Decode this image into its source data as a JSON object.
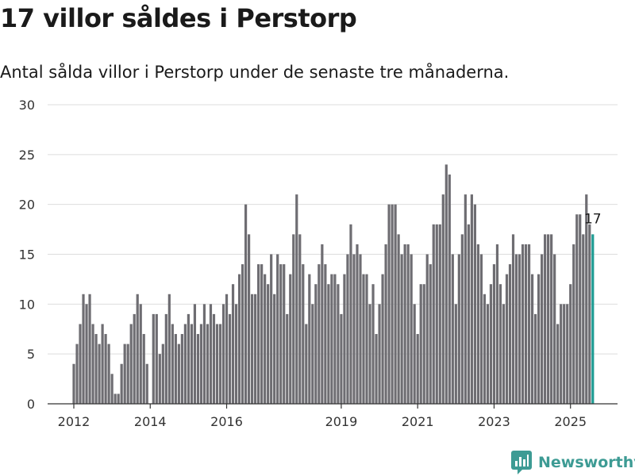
{
  "title": "17 villor såldes i Perstorp",
  "subtitle": "Antal sålda villor i Perstorp under de senaste tre månaderna.",
  "brand": "Newsworthy",
  "colors": {
    "bar": "#6e6d72",
    "highlight": "#1e9c93",
    "grid": "#dddddd",
    "axis": "#333333",
    "brand": "#3d9b94"
  },
  "chart_data": {
    "type": "bar",
    "x_start": "2012-01",
    "x_step": "month",
    "x_ticks": [
      "2012",
      "2014",
      "2016",
      "2019",
      "2021",
      "2023",
      "2025"
    ],
    "y_ticks": [
      0,
      5,
      10,
      15,
      20,
      25,
      30
    ],
    "ylim": [
      0,
      30
    ],
    "grid": true,
    "values": [
      4,
      6,
      8,
      11,
      10,
      11,
      8,
      7,
      6,
      8,
      7,
      6,
      3,
      1,
      1,
      4,
      6,
      6,
      8,
      9,
      11,
      10,
      7,
      4,
      0,
      9,
      9,
      5,
      6,
      9,
      11,
      8,
      7,
      6,
      7,
      8,
      9,
      8,
      10,
      7,
      8,
      10,
      8,
      10,
      9,
      8,
      8,
      10,
      11,
      9,
      12,
      10,
      13,
      14,
      20,
      17,
      11,
      11,
      14,
      14,
      13,
      12,
      15,
      11,
      15,
      14,
      14,
      9,
      13,
      17,
      21,
      17,
      14,
      8,
      13,
      10,
      12,
      14,
      16,
      14,
      12,
      13,
      13,
      12,
      9,
      13,
      15,
      18,
      15,
      16,
      15,
      13,
      13,
      10,
      12,
      7,
      10,
      13,
      16,
      20,
      20,
      20,
      17,
      15,
      16,
      16,
      15,
      10,
      7,
      12,
      12,
      15,
      14,
      18,
      18,
      18,
      21,
      24,
      23,
      15,
      10,
      15,
      17,
      21,
      18,
      21,
      20,
      16,
      15,
      11,
      10,
      12,
      14,
      16,
      12,
      10,
      13,
      14,
      17,
      15,
      15,
      16,
      16,
      16,
      13,
      9,
      13,
      15,
      17,
      17,
      17,
      15,
      8,
      10,
      10,
      10,
      12,
      16,
      19,
      19,
      17,
      21,
      18,
      17
    ],
    "last_value_label": "17"
  }
}
